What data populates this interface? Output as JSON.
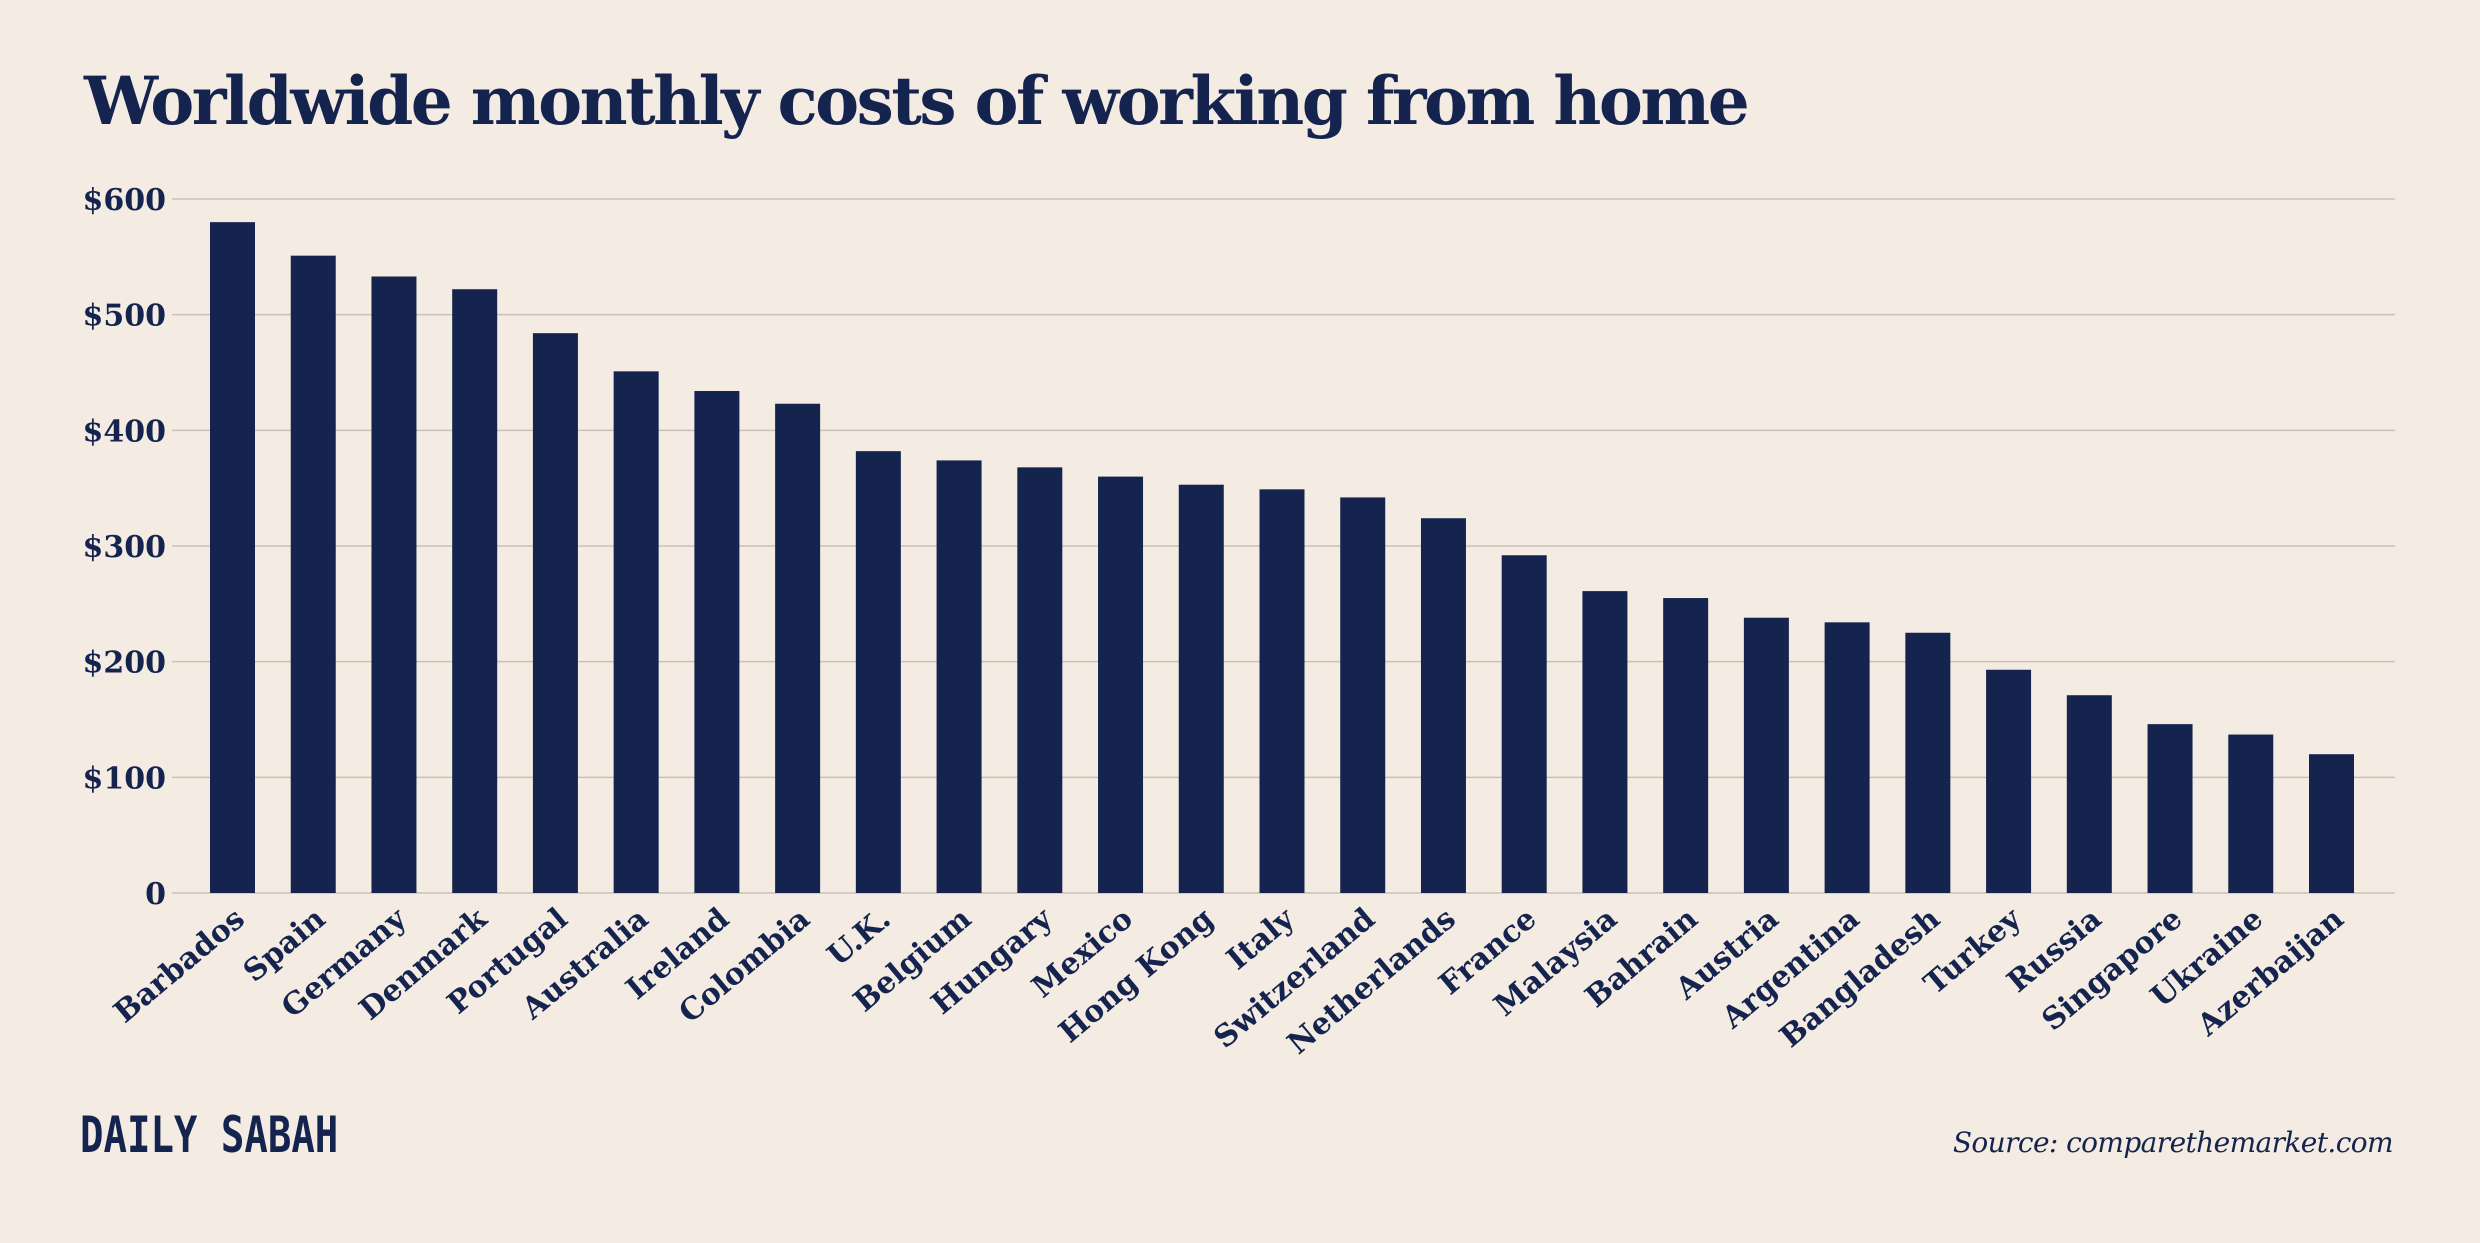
{
  "brand": "DAILY SABAH",
  "source": "Source: comparethemarket.com",
  "chart_data": {
    "type": "bar",
    "title": "Worldwide monthly costs of working from home",
    "xlabel": "",
    "ylabel": "",
    "ylim": [
      0,
      600
    ],
    "yticks": [
      0,
      100,
      200,
      300,
      400,
      500,
      600
    ],
    "ytick_labels": [
      "0",
      "$100",
      "$200",
      "$300",
      "$400",
      "$500",
      "$600"
    ],
    "grid": true,
    "legend": "none",
    "bar_color": "#15244f",
    "background": "#f4ece2",
    "categories": [
      "Barbados",
      "Spain",
      "Germany",
      "Denmark",
      "Portugal",
      "Australia",
      "Ireland",
      "Colombia",
      "U.K.",
      "Belgium",
      "Hungary",
      "Mexico",
      "Hong Kong",
      "Italy",
      "Switzerland",
      "Netherlands",
      "France",
      "Malaysia",
      "Bahrain",
      "Austria",
      "Argentina",
      "Bangladesh",
      "Turkey",
      "Russia",
      "Singapore",
      "Ukraine",
      "Azerbaijan"
    ],
    "values": [
      580,
      551,
      533,
      522,
      484,
      451,
      434,
      423,
      382,
      374,
      368,
      360,
      353,
      349,
      342,
      324,
      292,
      261,
      255,
      238,
      234,
      225,
      193,
      171,
      146,
      137,
      120
    ]
  }
}
